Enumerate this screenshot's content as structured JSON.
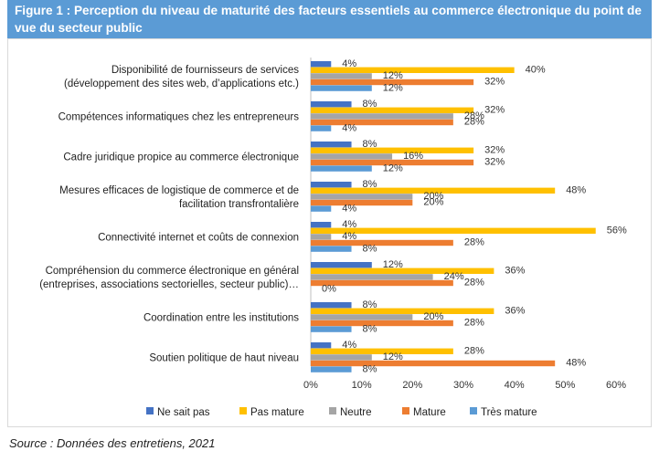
{
  "figure": {
    "title": "Figure 1 : Perception du niveau de maturité des facteurs essentiels au commerce électronique du point de vue du secteur public",
    "source": "Source : Données des entretiens, 2021"
  },
  "chart_data": {
    "type": "bar",
    "orientation": "horizontal",
    "categories": [
      [
        "Disponibilité de fournisseurs de services",
        "(développement des sites web, d’applications etc.)"
      ],
      [
        "Compétences informatiques chez les entrepreneurs"
      ],
      [
        "Cadre juridique propice au commerce électronique"
      ],
      [
        "Mesures efficaces de logistique de commerce et de",
        "facilitation transfrontalière"
      ],
      [
        "Connectivité internet et coûts de connexion"
      ],
      [
        "Compréhension du commerce électronique en général",
        "(entreprises, associations sectorielles, secteur public)…"
      ],
      [
        "Coordination entre les institutions"
      ],
      [
        "Soutien politique de haut niveau"
      ]
    ],
    "series": [
      {
        "name": "Ne sait pas",
        "color": "#4472c4",
        "values": [
          4,
          8,
          8,
          8,
          4,
          12,
          8,
          4
        ]
      },
      {
        "name": "Pas mature",
        "color": "#ffc000",
        "values": [
          40,
          32,
          32,
          48,
          56,
          36,
          36,
          28
        ]
      },
      {
        "name": "Neutre",
        "color": "#a5a5a5",
        "values": [
          12,
          28,
          16,
          20,
          4,
          24,
          20,
          12
        ]
      },
      {
        "name": "Mature",
        "color": "#ed7d31",
        "values": [
          32,
          28,
          32,
          20,
          28,
          28,
          28,
          48
        ]
      },
      {
        "name": "Très mature",
        "color": "#5b9bd5",
        "values": [
          12,
          4,
          12,
          4,
          8,
          0,
          8,
          8
        ]
      }
    ],
    "value_suffix": "%",
    "xlim": [
      0,
      60
    ],
    "xticks": [
      "0%",
      "10%",
      "20%",
      "30%",
      "40%",
      "50%",
      "60%"
    ],
    "legend_position": "bottom",
    "grid": false
  }
}
